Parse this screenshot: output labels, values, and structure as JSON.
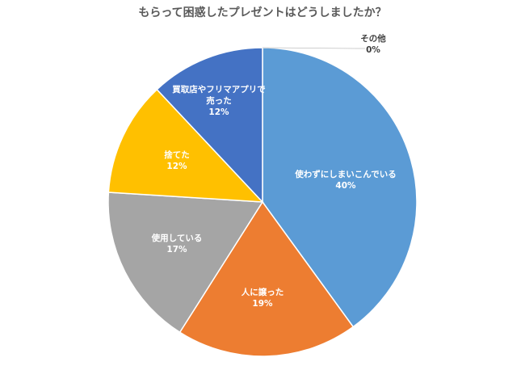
{
  "chart_data": {
    "type": "pie",
    "title": "もらって困惑したプレゼントはどうしましたか？",
    "slices": [
      {
        "label_lines": [
          "使わずにしまいこんでいる"
        ],
        "pct_label": "40%",
        "value": 40,
        "color": "#5B9BD5"
      },
      {
        "label_lines": [
          "人に譲った"
        ],
        "pct_label": "19%",
        "value": 19,
        "color": "#ED7D31"
      },
      {
        "label_lines": [
          "使用している"
        ],
        "pct_label": "17%",
        "value": 17,
        "color": "#A5A5A5"
      },
      {
        "label_lines": [
          "捨てた"
        ],
        "pct_label": "12%",
        "value": 12,
        "color": "#FFC000"
      },
      {
        "label_lines": [
          "買取店やフリマアプリで",
          "売った"
        ],
        "pct_label": "12%",
        "value": 12,
        "color": "#4472C4"
      },
      {
        "label_lines": [
          "その他"
        ],
        "pct_label": "0%",
        "value": 0,
        "color": "#70AD47"
      }
    ]
  }
}
